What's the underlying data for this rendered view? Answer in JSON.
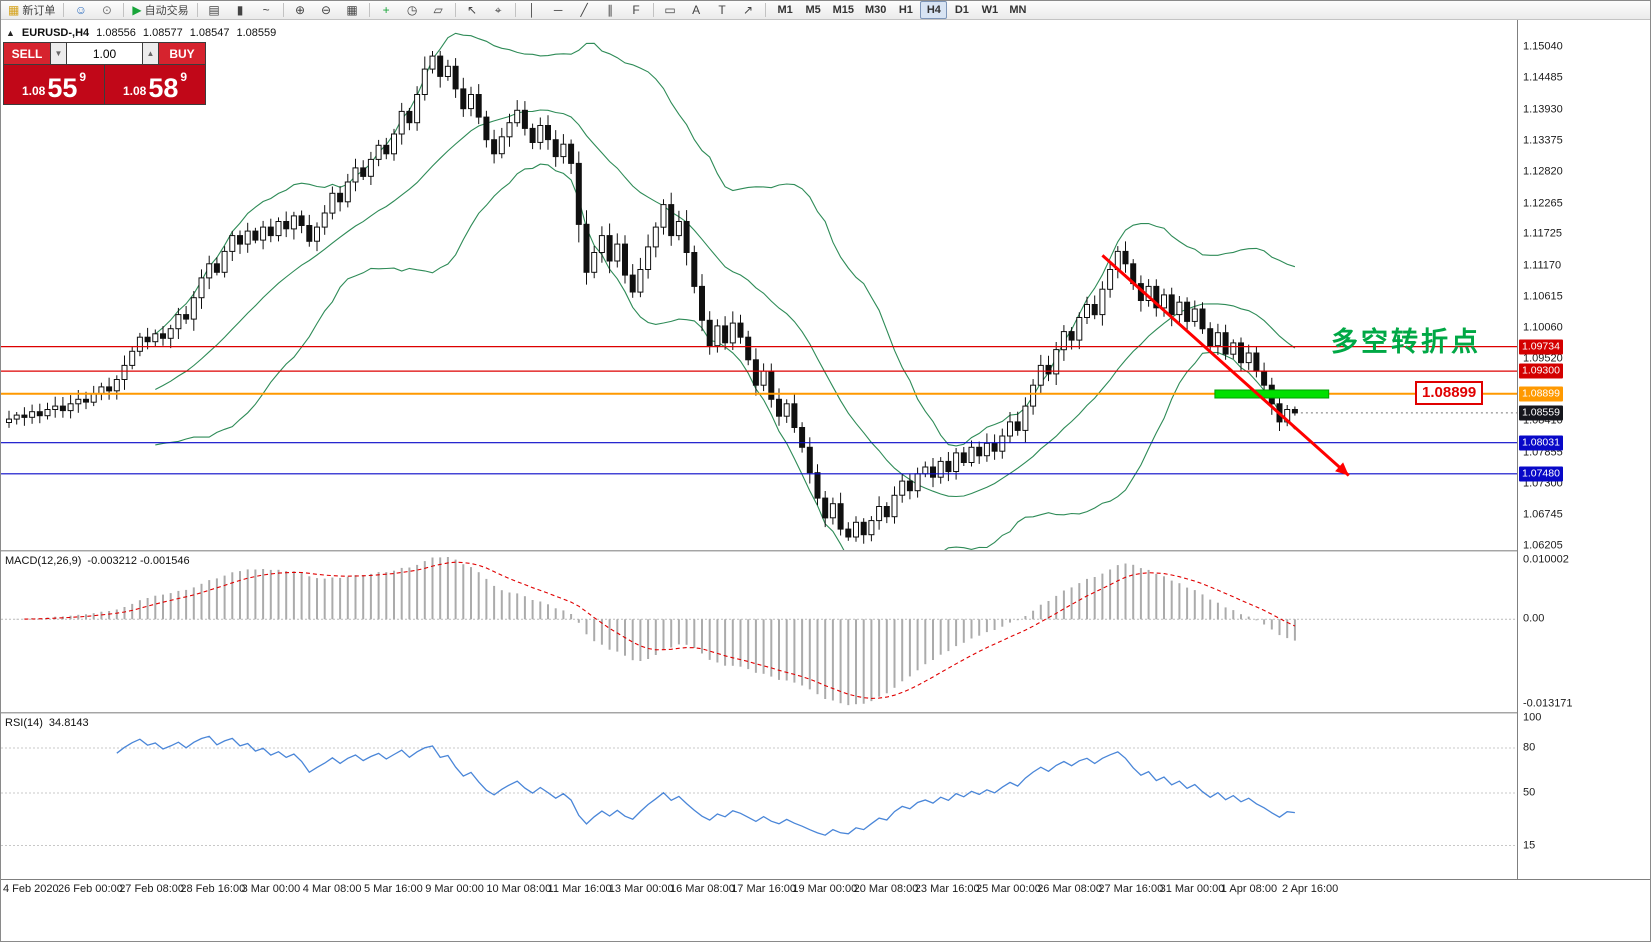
{
  "toolbar": {
    "groups": [
      {
        "items": [
          {
            "name": "new-order-button",
            "glyph": "▦",
            "glyph_color": "#d4a017",
            "label": "新订单"
          }
        ]
      },
      {
        "items": [
          {
            "name": "profile-button",
            "glyph": "☺",
            "glyph_color": "#2f6fc0"
          },
          {
            "name": "community-button",
            "glyph": "⊙",
            "glyph_color": "#777777"
          }
        ]
      },
      {
        "items": [
          {
            "name": "autotrading-button",
            "glyph": "▶",
            "glyph_color": "#18a53a",
            "label": "自动交易"
          }
        ]
      },
      {
        "items": [
          {
            "name": "bar-chart-button",
            "glyph": "▤"
          },
          {
            "name": "candlestick-chart-button",
            "glyph": "▮"
          },
          {
            "name": "line-chart-button",
            "glyph": "~"
          }
        ]
      },
      {
        "items": [
          {
            "name": "zoom-in-button",
            "glyph": "⊕"
          },
          {
            "name": "zoom-out-button",
            "glyph": "⊖"
          },
          {
            "name": "tile-windows-button",
            "glyph": "▦"
          }
        ]
      },
      {
        "items": [
          {
            "name": "indicators-button",
            "glyph": "+",
            "glyph_color": "#18a53a"
          },
          {
            "name": "periods-button",
            "glyph": "◷"
          },
          {
            "name": "templates-button",
            "glyph": "▱"
          }
        ]
      },
      {
        "items": [
          {
            "name": "cursor-button",
            "glyph": "↖"
          },
          {
            "name": "crosshair-button",
            "glyph": "⌖"
          }
        ]
      },
      {
        "items": [
          {
            "name": "vertical-line-button",
            "glyph": "│"
          },
          {
            "name": "horizontal-line-button",
            "glyph": "─"
          },
          {
            "name": "trendline-button",
            "glyph": "╱"
          },
          {
            "name": "equidistant-channel-button",
            "glyph": "∥"
          },
          {
            "name": "fibonacci-button",
            "glyph": "F"
          }
        ]
      },
      {
        "items": [
          {
            "name": "shapes-button",
            "glyph": "▭"
          },
          {
            "name": "text-button",
            "glyph": "A"
          },
          {
            "name": "label-button",
            "glyph": "T"
          },
          {
            "name": "arrow-tools-button",
            "glyph": "↗"
          }
        ]
      }
    ],
    "timeframes": {
      "items": [
        "M1",
        "M5",
        "M15",
        "M30",
        "H1",
        "H4",
        "D1",
        "W1",
        "MN"
      ],
      "active": "H4"
    }
  },
  "symbol_info": {
    "collapse_arrow": "▲",
    "title": "EURUSD-,H4",
    "open": "1.08556",
    "high": "1.08577",
    "low": "1.08547",
    "close": "1.08559"
  },
  "trade_panel": {
    "sell_label": "SELL",
    "buy_label": "BUY",
    "volume": "1.00",
    "volume_down": "▼",
    "volume_up": "▲",
    "sell_price": {
      "head": "1.08",
      "big": "55",
      "sup": "9"
    },
    "buy_price": {
      "head": "1.08",
      "big": "58",
      "sup": "9"
    },
    "button_color": "#d6232e",
    "panel_color": "#c10718"
  },
  "indicators": {
    "macd_title": "MACD(12,26,9)",
    "macd_values": "-0.003212 -0.001546",
    "rsi_title": "RSI(14)",
    "rsi_value": "34.8143"
  },
  "annotations": {
    "turning_point_text": "多空转折点",
    "turning_point_color": "#00a845",
    "price_callout": "1.08899",
    "callout_color": "#e00000",
    "trendline": {
      "from_index": 142,
      "from_price": 1.1135,
      "to_index": 174,
      "to_price": 1.0745,
      "color": "#ff0000"
    },
    "highlight_rect": {
      "from_index": 157,
      "to_index": 171,
      "top_price": 1.08965,
      "bottom_price": 1.08823,
      "color": "#00e000"
    }
  },
  "chart_data": {
    "type": "candlestick",
    "symbol": "EURUSD-",
    "timeframe": "H4",
    "price_range": {
      "top": 1.1552,
      "bottom": 1.0613
    },
    "closes": [
      1.0845,
      1.0852,
      1.0848,
      1.0858,
      1.0851,
      1.0862,
      1.0868,
      1.086,
      1.0872,
      1.088,
      1.0875,
      1.089,
      1.0902,
      1.0895,
      1.0915,
      1.094,
      1.0965,
      1.099,
      1.0982,
      1.0996,
      1.0988,
      1.1005,
      1.103,
      1.1022,
      1.106,
      1.1095,
      1.112,
      1.1105,
      1.1142,
      1.117,
      1.1155,
      1.1178,
      1.1162,
      1.1185,
      1.117,
      1.1195,
      1.1182,
      1.1205,
      1.1188,
      1.116,
      1.1185,
      1.121,
      1.1245,
      1.123,
      1.1265,
      1.129,
      1.1275,
      1.1305,
      1.133,
      1.1315,
      1.135,
      1.139,
      1.137,
      1.142,
      1.1465,
      1.1488,
      1.1452,
      1.147,
      1.143,
      1.1395,
      1.142,
      1.138,
      1.134,
      1.1315,
      1.1345,
      1.137,
      1.1392,
      1.136,
      1.1335,
      1.1365,
      1.134,
      1.131,
      1.1332,
      1.1298,
      1.119,
      1.1105,
      1.114,
      1.117,
      1.1125,
      1.1155,
      1.11,
      1.107,
      1.111,
      1.115,
      1.1185,
      1.1225,
      1.117,
      1.1195,
      1.114,
      1.108,
      1.102,
      1.0975,
      1.101,
      1.098,
      1.1015,
      1.099,
      1.095,
      1.0905,
      1.093,
      1.088,
      1.085,
      1.0872,
      1.083,
      1.0795,
      1.075,
      1.0705,
      1.067,
      1.0695,
      1.065,
      1.0636,
      1.0662,
      1.064,
      1.0665,
      1.069,
      1.0672,
      1.071,
      1.0735,
      1.0718,
      1.0748,
      1.076,
      1.0742,
      1.077,
      1.0752,
      1.0785,
      1.0768,
      1.0795,
      1.078,
      1.0802,
      1.0788,
      1.0815,
      1.084,
      1.0825,
      1.0868,
      1.0905,
      1.094,
      1.0925,
      1.0968,
      1.1,
      1.0985,
      1.1025,
      1.1048,
      1.103,
      1.1075,
      1.111,
      1.1142,
      1.112,
      1.1085,
      1.1055,
      1.108,
      1.1042,
      1.1065,
      1.103,
      1.1052,
      1.1018,
      1.104,
      1.1005,
      1.0975,
      1.0998,
      1.096,
      1.098,
      1.0945,
      1.0962,
      1.093,
      1.0905,
      1.0872,
      1.084,
      1.0862,
      1.08559
    ],
    "bollinger": {
      "period": 20,
      "deviation": 2,
      "color": "#2e8b57"
    },
    "hlines": [
      {
        "price": 1.09734,
        "color": "#dd0000",
        "width": 1.2
      },
      {
        "price": 1.093,
        "color": "#dd0000",
        "width": 1.2
      },
      {
        "price": 1.08899,
        "color": "#ff9900",
        "width": 2
      },
      {
        "price": 1.08031,
        "color": "#0808c8",
        "width": 1.2
      },
      {
        "price": 1.0748,
        "color": "#0808c8",
        "width": 1.2
      }
    ],
    "price_axis_labels": [
      "1.15040",
      "1.14485",
      "1.13930",
      "1.13375",
      "1.12820",
      "1.12265",
      "1.11725",
      "1.11170",
      "1.10615",
      "1.10060",
      "1.09520",
      "1.08410",
      "1.07855",
      "1.07300",
      "1.06745",
      "1.06205"
    ],
    "price_line_labels": [
      {
        "text": "1.09734",
        "bg": "#d40000"
      },
      {
        "text": "1.09300",
        "bg": "#d40000"
      },
      {
        "text": "1.08899",
        "bg": "#ff9900"
      },
      {
        "text": "1.08559",
        "bg": "#15161d"
      },
      {
        "text": "1.08031",
        "bg": "#0808c8"
      },
      {
        "text": "1.07480",
        "bg": "#0808c8"
      }
    ],
    "macd": {
      "fast": 12,
      "slow": 26,
      "signal": 9,
      "axis_labels": [
        "0.010002",
        "0.00",
        "-0.013171"
      ],
      "histogram_color": "#ababab",
      "signal_color": "#e00000"
    },
    "rsi": {
      "period": 14,
      "levels": [
        80,
        50,
        15
      ],
      "axis_labels": [
        "100",
        "80",
        "50",
        "15"
      ],
      "color": "#4a86d8"
    },
    "date_labels": [
      "4 Feb 2020",
      "26 Feb 00:00",
      "27 Feb 08:00",
      "28 Feb 16:00",
      "3 Mar 00:00",
      "4 Mar 08:00",
      "5 Mar 16:00",
      "9 Mar 00:00",
      "10 Mar 08:00",
      "11 Mar 16:00",
      "13 Mar 00:00",
      "16 Mar 08:00",
      "17 Mar 16:00",
      "19 Mar 00:00",
      "20 Mar 08:00",
      "23 Mar 16:00",
      "25 Mar 00:00",
      "26 Mar 08:00",
      "27 Mar 16:00",
      "31 Mar 00:00",
      "1 Apr 08:00",
      "2 Apr 16:00"
    ]
  }
}
